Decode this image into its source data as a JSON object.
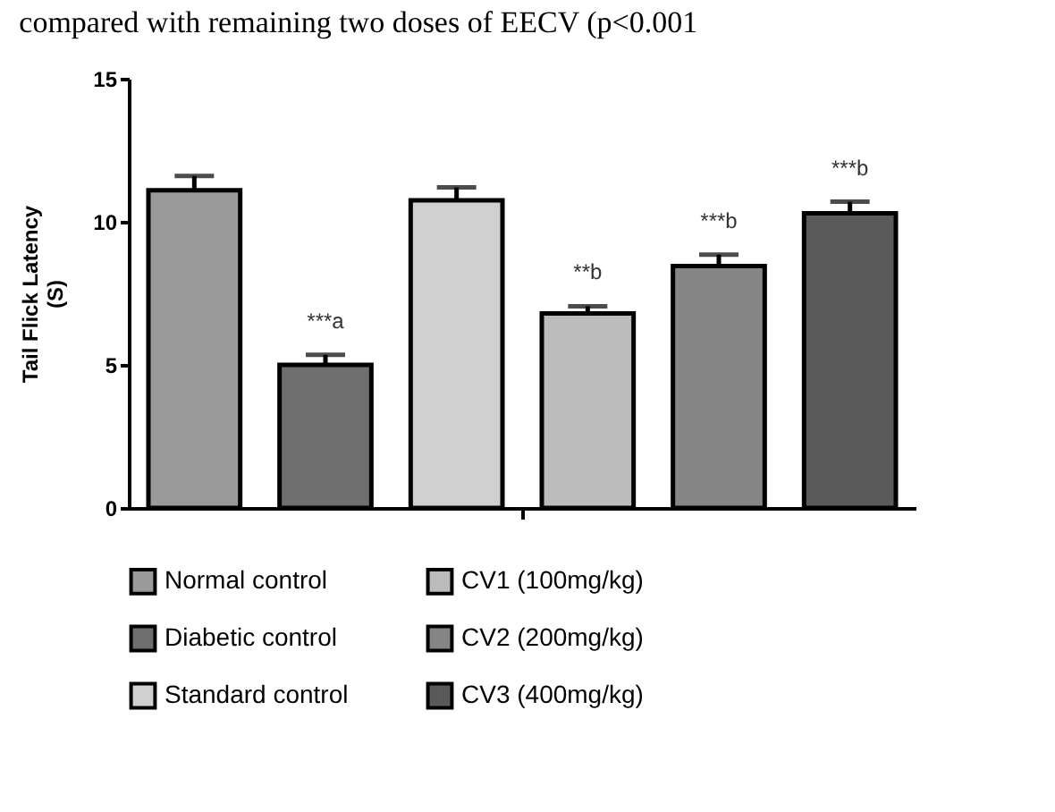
{
  "chart_data": {
    "type": "bar",
    "ylabel": "Tail Flick Latency\n(S)",
    "categories": [
      null
    ],
    "series": [
      {
        "name": "Normal control",
        "color": "#9a9a9a",
        "values": [
          11.1
        ],
        "errors": [
          [
            11.1,
            11.6
          ]
        ]
      },
      {
        "name": "Diabetic control",
        "color": "#6e6e6e",
        "values": [
          5.0
        ],
        "errors": [
          [
            5.0,
            5.35
          ]
        ]
      },
      {
        "name": "Standard control",
        "color": "#d0d0d0",
        "values": [
          10.75
        ],
        "errors": [
          [
            10.75,
            11.2
          ]
        ]
      },
      {
        "name": "CV1 (100mg/kg)",
        "color": "#bcbcbc",
        "values": [
          6.8
        ],
        "errors": [
          [
            6.8,
            7.05
          ]
        ]
      },
      {
        "name": "CV2 (200mg/kg)",
        "color": "#858585",
        "values": [
          8.45
        ],
        "errors": [
          [
            8.45,
            8.85
          ]
        ]
      },
      {
        "name": "CV3 (400mg/kg)",
        "color": "#5a5a5a",
        "values": [
          10.3
        ],
        "errors": [
          [
            10.3,
            10.7
          ]
        ]
      }
    ],
    "ylim": [
      0,
      15
    ],
    "yticks": [
      0,
      5,
      10,
      15
    ],
    "legend": "bottom",
    "tick_labels": "y",
    "annotations": [
      "compared with remaining two doses of EECV (p<0.001",
      "***a",
      "**b",
      "***b",
      "***b"
    ]
  }
}
